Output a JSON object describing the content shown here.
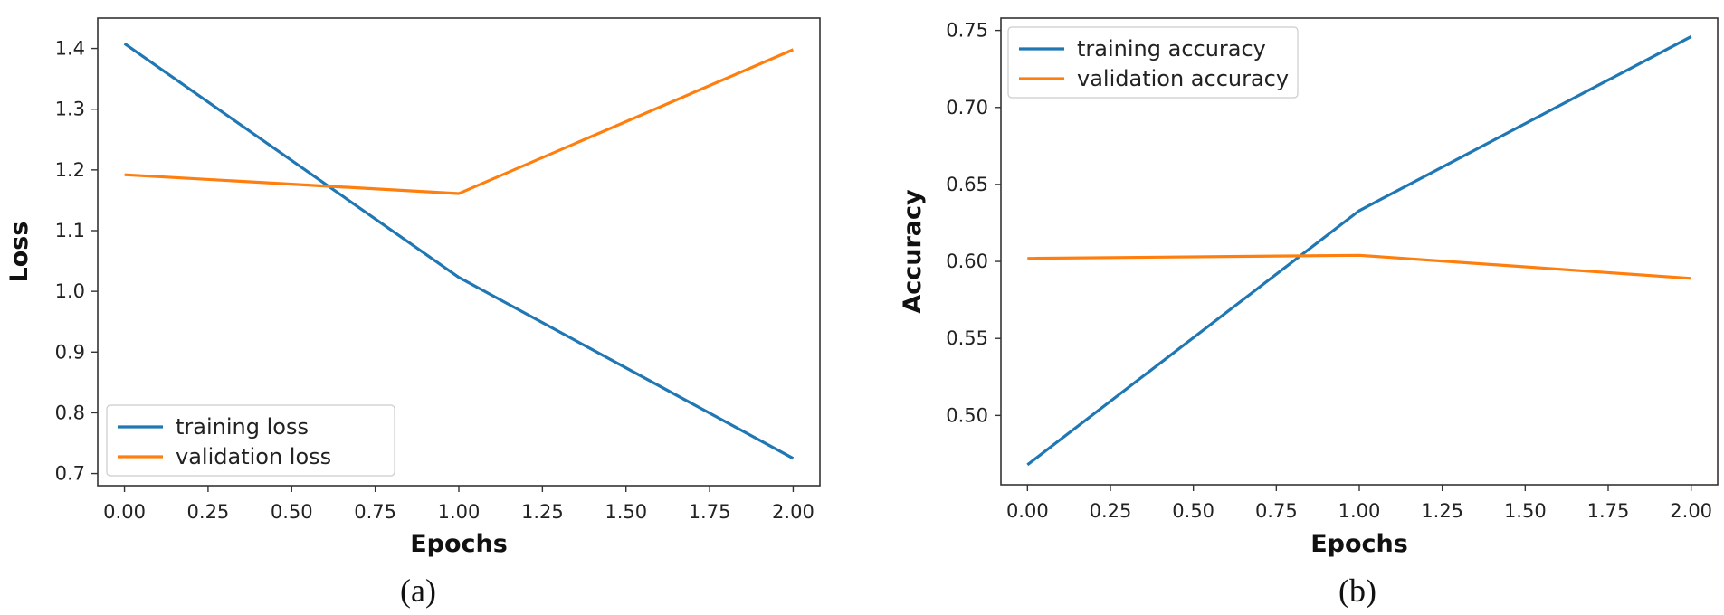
{
  "chart_data": [
    {
      "type": "line",
      "caption": "(a)",
      "xlabel": "Epochs",
      "ylabel": "Loss",
      "xlim": [
        -0.08,
        2.08
      ],
      "ylim": [
        0.68,
        1.45
      ],
      "x_ticks": [
        0.0,
        0.25,
        0.5,
        0.75,
        1.0,
        1.25,
        1.5,
        1.75,
        2.0
      ],
      "x_tick_labels": [
        "0.00",
        "0.25",
        "0.50",
        "0.75",
        "1.00",
        "1.25",
        "1.50",
        "1.75",
        "2.00"
      ],
      "y_ticks": [
        0.7,
        0.8,
        0.9,
        1.0,
        1.1,
        1.2,
        1.3,
        1.4
      ],
      "y_tick_labels": [
        "0.7",
        "0.8",
        "0.9",
        "1.0",
        "1.1",
        "1.2",
        "1.3",
        "1.4"
      ],
      "legend_position": "bottom-left",
      "series": [
        {
          "name": "training loss",
          "color": "#1f77b4",
          "x": [
            0,
            1,
            2
          ],
          "y": [
            1.408,
            1.023,
            0.725
          ]
        },
        {
          "name": "validation loss",
          "color": "#ff7f0e",
          "x": [
            0,
            1,
            2
          ],
          "y": [
            1.192,
            1.161,
            1.398
          ]
        }
      ]
    },
    {
      "type": "line",
      "caption": "(b)",
      "xlabel": "Epochs",
      "ylabel": "Accuracy",
      "xlim": [
        -0.08,
        2.08
      ],
      "ylim": [
        0.455,
        0.758
      ],
      "x_ticks": [
        0.0,
        0.25,
        0.5,
        0.75,
        1.0,
        1.25,
        1.5,
        1.75,
        2.0
      ],
      "x_tick_labels": [
        "0.00",
        "0.25",
        "0.50",
        "0.75",
        "1.00",
        "1.25",
        "1.50",
        "1.75",
        "2.00"
      ],
      "y_ticks": [
        0.5,
        0.55,
        0.6,
        0.65,
        0.7,
        0.75
      ],
      "y_tick_labels": [
        "0.50",
        "0.55",
        "0.60",
        "0.65",
        "0.70",
        "0.75"
      ],
      "legend_position": "top-left",
      "series": [
        {
          "name": "training accuracy",
          "color": "#1f77b4",
          "x": [
            0,
            1,
            2
          ],
          "y": [
            0.468,
            0.633,
            0.746
          ]
        },
        {
          "name": "validation accuracy",
          "color": "#ff7f0e",
          "x": [
            0,
            1,
            2
          ],
          "y": [
            0.602,
            0.604,
            0.589
          ]
        }
      ]
    }
  ]
}
